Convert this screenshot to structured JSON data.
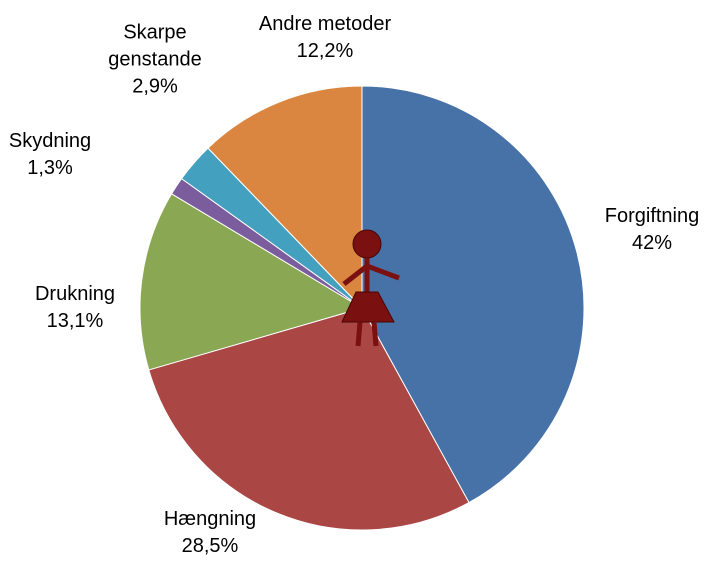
{
  "chart_data": {
    "type": "pie",
    "categories": [
      "Forgiftning",
      "Hængning",
      "Drukning",
      "Skydning",
      "Skarpe genstande",
      "Andre metoder"
    ],
    "values": [
      42,
      28.5,
      13.1,
      1.3,
      2.9,
      12.2
    ],
    "value_labels": [
      "42%",
      "28,5%",
      "13,1%",
      "1,3%",
      "2,9%",
      "12,2%"
    ],
    "colors": [
      "#4672a8",
      "#aa4644",
      "#8aa753",
      "#7b5d9e",
      "#43a0bf",
      "#db8640"
    ]
  }
}
